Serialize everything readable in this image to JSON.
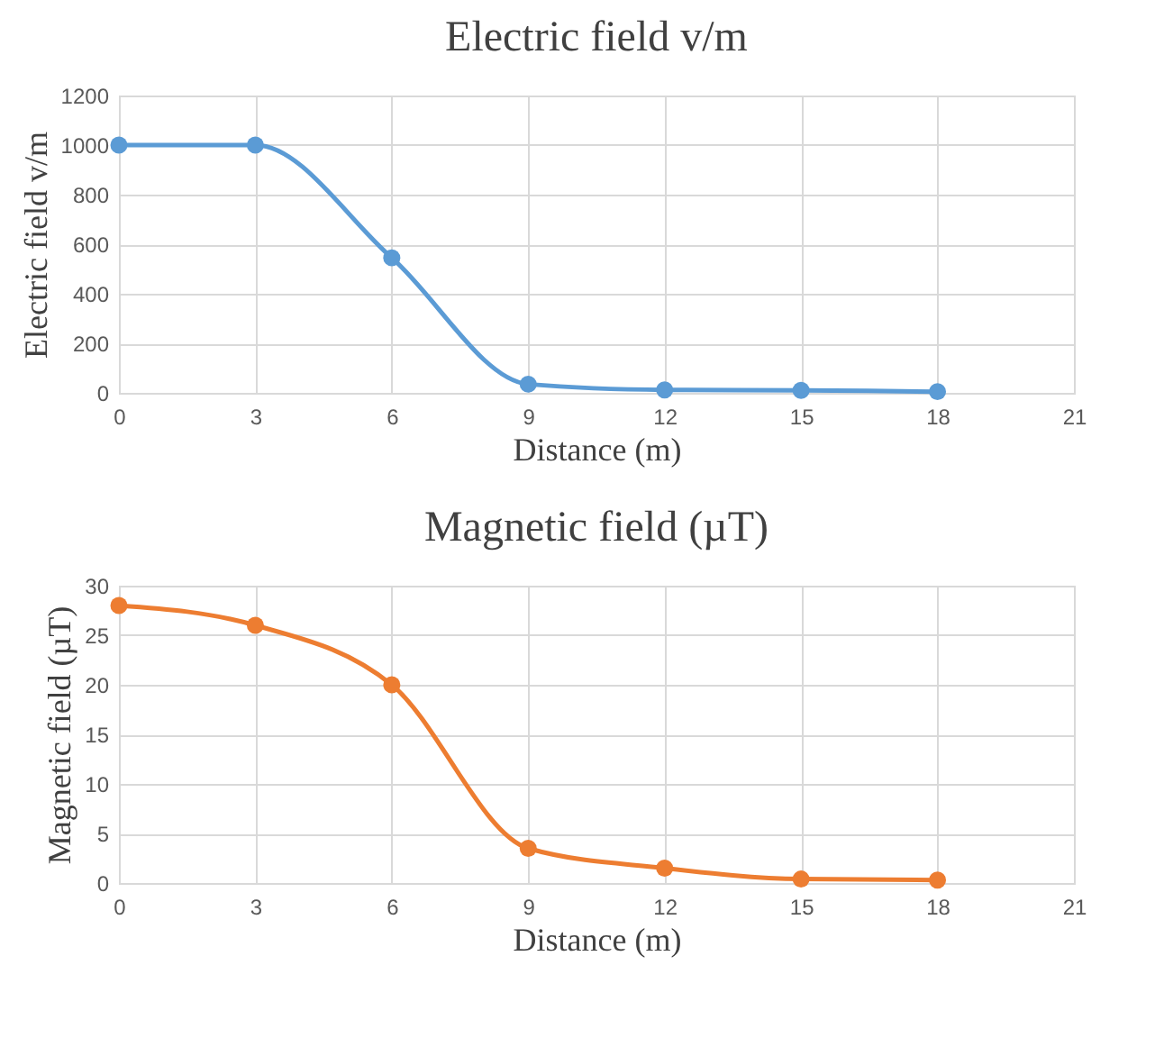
{
  "chart_data": [
    {
      "type": "line",
      "title": "Electric field v/m",
      "xlabel": "Distance (m)",
      "ylabel": "Electric field v/m",
      "x": [
        0,
        3,
        6,
        9,
        12,
        15,
        18
      ],
      "series": [
        {
          "color": "#5b9bd5",
          "values": [
            1000,
            1000,
            545,
            35,
            12,
            10,
            5
          ]
        }
      ],
      "xlim": [
        0,
        21
      ],
      "xticks": [
        0,
        3,
        6,
        9,
        12,
        15,
        18,
        21
      ],
      "ylim": [
        0,
        1200
      ],
      "yticks": [
        0,
        200,
        400,
        600,
        800,
        1000,
        1200
      ],
      "grid": true,
      "marker": "circle"
    },
    {
      "type": "line",
      "title": "Magnetic field (µT)",
      "xlabel": "Distance (m)",
      "ylabel": "Magnetic field (µT)",
      "x": [
        0,
        3,
        6,
        9,
        12,
        15,
        18
      ],
      "series": [
        {
          "color": "#ed7d31",
          "values": [
            28,
            26,
            20,
            3.5,
            1.5,
            0.4,
            0.3
          ]
        }
      ],
      "xlim": [
        0,
        21
      ],
      "xticks": [
        0,
        3,
        6,
        9,
        12,
        15,
        18,
        21
      ],
      "ylim": [
        0,
        30
      ],
      "yticks": [
        0,
        5,
        10,
        15,
        20,
        25,
        30
      ],
      "grid": true,
      "marker": "circle"
    }
  ]
}
